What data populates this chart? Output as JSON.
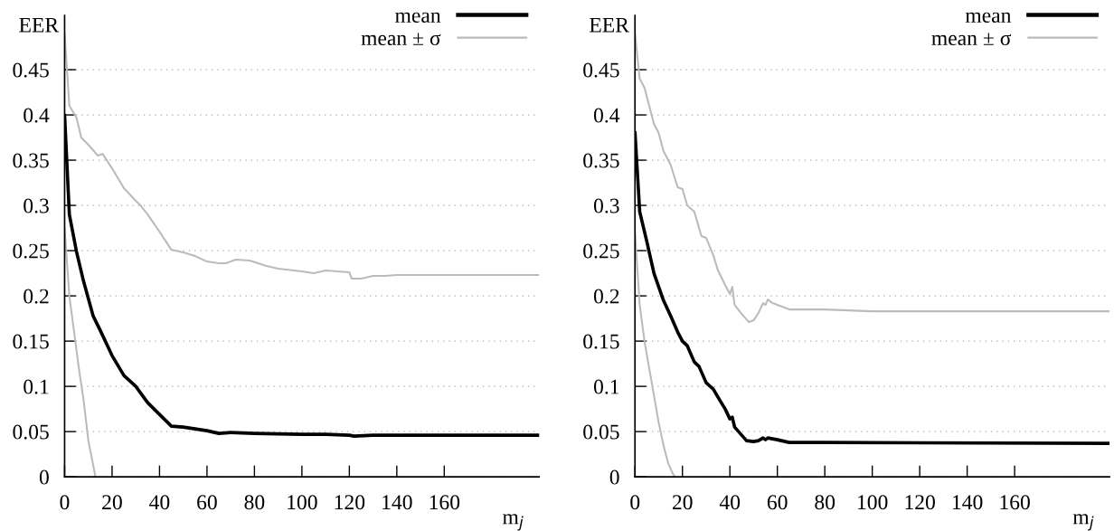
{
  "chart_data": [
    {
      "type": "line",
      "xlabel": "m$_{j}$",
      "ylabel": "EER",
      "xlim": [
        0,
        200
      ],
      "ylim": [
        0,
        0.51
      ],
      "xticks": [
        0,
        20,
        40,
        60,
        80,
        100,
        120,
        140,
        160
      ],
      "yticks": [
        0,
        0.05,
        0.1,
        0.15,
        0.2,
        0.25,
        0.3,
        0.35,
        0.4,
        0.45
      ],
      "grid": "y",
      "legend": "top right",
      "series": [
        {
          "name": "mean",
          "color": "#000000",
          "x": [
            0,
            2,
            5,
            8,
            12,
            15,
            20,
            25,
            30,
            35,
            40,
            45,
            50,
            55,
            60,
            65,
            70,
            80,
            100,
            110,
            120,
            122,
            130,
            140,
            200
          ],
          "values": [
            0.4,
            0.29,
            0.249,
            0.216,
            0.178,
            0.162,
            0.134,
            0.112,
            0.1,
            0.082,
            0.069,
            0.056,
            0.055,
            0.053,
            0.051,
            0.048,
            0.049,
            0.048,
            0.047,
            0.047,
            0.046,
            0.045,
            0.046,
            0.046,
            0.046
          ]
        },
        {
          "name": "mean ± σ",
          "color": "#bbbbbb",
          "x": [
            0,
            2,
            5,
            7,
            10,
            14,
            16,
            20,
            25,
            30,
            32,
            35,
            40,
            45,
            50,
            55,
            60,
            65,
            68,
            72,
            78,
            85,
            90,
            100,
            105,
            110,
            120,
            121,
            125,
            130,
            135,
            140,
            200
          ],
          "values": [
            0.49,
            0.41,
            0.397,
            0.375,
            0.367,
            0.355,
            0.357,
            0.341,
            0.319,
            0.305,
            0.3,
            0.29,
            0.271,
            0.251,
            0.248,
            0.244,
            0.238,
            0.236,
            0.236,
            0.24,
            0.239,
            0.233,
            0.23,
            0.227,
            0.225,
            0.228,
            0.226,
            0.219,
            0.219,
            0.222,
            0.222,
            0.223,
            0.223
          ]
        },
        {
          "color": "#bbbbbb",
          "x": [
            0,
            2,
            4,
            6,
            8,
            10,
            13
          ],
          "values": [
            0.275,
            0.2,
            0.16,
            0.12,
            0.085,
            0.04,
            0.0
          ]
        }
      ]
    },
    {
      "type": "line",
      "xlabel": "m$_{j}$",
      "ylabel": "EER",
      "xlim": [
        0,
        200
      ],
      "ylim": [
        0,
        0.51
      ],
      "xticks": [
        0,
        20,
        40,
        60,
        80,
        100,
        120,
        140,
        160
      ],
      "yticks": [
        0,
        0.05,
        0.1,
        0.15,
        0.2,
        0.25,
        0.3,
        0.35,
        0.4,
        0.45
      ],
      "grid": "y",
      "legend": "top right",
      "series": [
        {
          "name": "mean",
          "color": "#000000",
          "x": [
            0,
            2,
            5,
            8,
            10,
            12,
            15,
            18,
            20,
            22,
            25,
            27,
            30,
            33,
            35,
            38,
            40,
            41,
            42,
            45,
            47,
            50,
            52,
            54,
            55,
            56,
            60,
            65,
            80,
            200
          ],
          "values": [
            0.381,
            0.293,
            0.26,
            0.225,
            0.21,
            0.195,
            0.178,
            0.16,
            0.15,
            0.145,
            0.127,
            0.122,
            0.104,
            0.097,
            0.088,
            0.075,
            0.064,
            0.066,
            0.055,
            0.046,
            0.04,
            0.039,
            0.04,
            0.043,
            0.041,
            0.043,
            0.041,
            0.038,
            0.038,
            0.037
          ]
        },
        {
          "name": "mean ± σ",
          "color": "#bbbbbb",
          "x": [
            0,
            2,
            4,
            6,
            8,
            10,
            12,
            15,
            18,
            20,
            22,
            25,
            28,
            30,
            33,
            35,
            38,
            40,
            41,
            42,
            45,
            48,
            50,
            52,
            54,
            55,
            56,
            58,
            62,
            65,
            80,
            100,
            200
          ],
          "values": [
            0.49,
            0.44,
            0.43,
            0.41,
            0.39,
            0.38,
            0.36,
            0.345,
            0.32,
            0.318,
            0.3,
            0.293,
            0.266,
            0.264,
            0.245,
            0.228,
            0.212,
            0.202,
            0.21,
            0.19,
            0.18,
            0.171,
            0.173,
            0.181,
            0.192,
            0.19,
            0.196,
            0.192,
            0.188,
            0.185,
            0.185,
            0.183,
            0.183
          ]
        },
        {
          "color": "#bbbbbb",
          "x": [
            0,
            2,
            4,
            6,
            8,
            10,
            12,
            14,
            16,
            17
          ],
          "values": [
            0.27,
            0.19,
            0.15,
            0.12,
            0.09,
            0.06,
            0.035,
            0.015,
            0.003,
            0.0
          ]
        }
      ]
    }
  ]
}
